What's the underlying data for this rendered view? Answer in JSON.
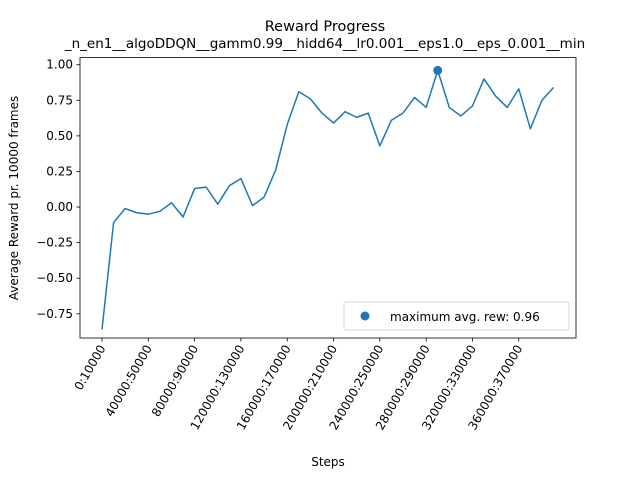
{
  "chart_data": {
    "type": "line",
    "title": "Reward Progress",
    "subtitle": "_n_en1__algoDDQN__gamm0.99__hidd64__lr0.001__eps1.0__eps_0.001__min",
    "xlabel": "Steps",
    "ylabel": "Average Reward pr. 10000 frames",
    "ylim": [
      -0.92,
      1.05
    ],
    "yticks": [
      -0.75,
      -0.5,
      -0.25,
      0.0,
      0.25,
      0.5,
      0.75,
      1.0
    ],
    "ytick_labels": [
      "−0.75",
      "−0.50",
      "−0.25",
      "0.00",
      "0.25",
      "0.50",
      "0.75",
      "1.00"
    ],
    "xtick_labels": [
      "0:10000",
      "40000:50000",
      "80000:90000",
      "120000:130000",
      "160000:170000",
      "200000:210000",
      "240000:250000",
      "280000:290000",
      "320000:330000",
      "360000:370000"
    ],
    "xtick_index": [
      0,
      4,
      8,
      12,
      16,
      20,
      24,
      28,
      32,
      36
    ],
    "series": [
      {
        "values": [
          -0.86,
          -0.11,
          -0.01,
          -0.04,
          -0.05,
          -0.03,
          0.03,
          -0.07,
          0.13,
          0.14,
          0.02,
          0.15,
          0.2,
          0.01,
          0.07,
          0.26,
          0.58,
          0.81,
          0.76,
          0.66,
          0.59,
          0.67,
          0.63,
          0.66,
          0.43,
          0.61,
          0.66,
          0.77,
          0.7,
          0.96,
          0.7,
          0.64,
          0.71,
          0.9,
          0.78,
          0.7,
          0.83,
          0.55,
          0.75,
          0.84
        ],
        "color": "#1f77b4"
      }
    ],
    "max_point": {
      "index": 29,
      "value": 0.96
    },
    "legend": {
      "label": "maximum avg. rew: 0.96",
      "placement": "lower-right"
    },
    "grid": false
  }
}
